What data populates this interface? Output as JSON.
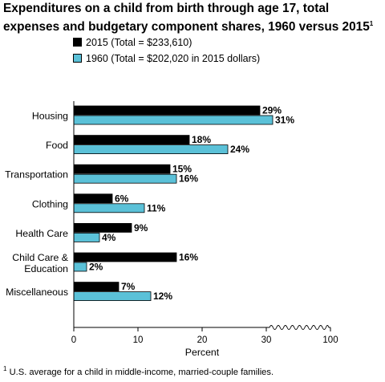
{
  "title_line1": "Expenditures on a child from birth through age 17, total",
  "title_line2": "expenses and budgetary component shares, 1960 versus 2015",
  "title_footnote_mark": "1",
  "footnote_mark": "1",
  "footnote_text": "U.S. average for a child in middle-income, married-couple families.",
  "colors": {
    "series_2015": "#000000",
    "series_1960": "#5bc1d8",
    "outline": "#000000"
  },
  "chart_data": {
    "type": "bar",
    "orientation": "horizontal",
    "title": "Expenditures on a child from birth through age 17, total expenses and budgetary component shares, 1960 versus 2015",
    "xlabel": "Percent",
    "ylabel": "",
    "categories": [
      [
        "Housing"
      ],
      [
        "Food"
      ],
      [
        "Transportation"
      ],
      [
        "Clothing"
      ],
      [
        "Health Care"
      ],
      [
        "Child Care &",
        "Education"
      ],
      [
        "Miscellaneous"
      ]
    ],
    "series": [
      {
        "name": "2015 (Total = $233,610)",
        "values": [
          29,
          18,
          15,
          6,
          9,
          16,
          7
        ],
        "labels": [
          "29%",
          "18%",
          "15%",
          "6%",
          "9%",
          "16%",
          "7%"
        ]
      },
      {
        "name": "1960 (Total = $202,020 in 2015 dollars)",
        "values": [
          31,
          24,
          16,
          11,
          4,
          2,
          12
        ],
        "labels": [
          "31%",
          "24%",
          "16%",
          "11%",
          "4%",
          "2%",
          "12%"
        ]
      }
    ],
    "xticks": [
      "0",
      "10",
      "20",
      "30",
      "100"
    ],
    "xlim": [
      0,
      100
    ],
    "axis_break": [
      30,
      100
    ],
    "grid": false,
    "legend_position": "top-left"
  }
}
